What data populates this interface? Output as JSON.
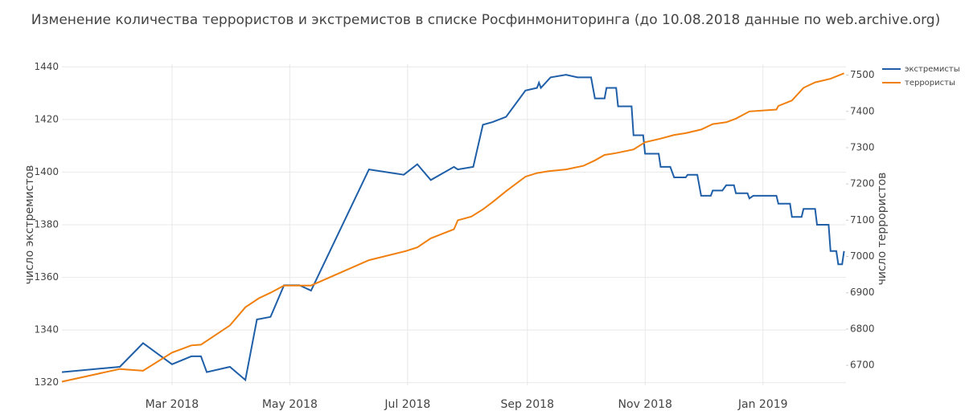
{
  "chart_data": {
    "type": "line",
    "title": "Изменение количества террористов и экстремистов в списке Росфинмониторинга (до 10.08.2018 данные по web.archive.org)",
    "ylabel": "число экстремистов",
    "y2label": "число террористов",
    "xlim": [
      "2018-01-03",
      "2019-02-13"
    ],
    "xticks": [
      {
        "value": "2018-03-01",
        "label": "Mar 2018"
      },
      {
        "value": "2018-05-01",
        "label": "May 2018"
      },
      {
        "value": "2018-07-01",
        "label": "Jul 2018"
      },
      {
        "value": "2018-09-01",
        "label": "Sep 2018"
      },
      {
        "value": "2018-11-01",
        "label": "Nov 2018"
      },
      {
        "value": "2019-01-01",
        "label": "Jan 2019"
      }
    ],
    "ylim": [
      1319,
      1441
    ],
    "yticks": [
      1320,
      1340,
      1360,
      1380,
      1400,
      1420,
      1440
    ],
    "y2lim": [
      6645,
      7530
    ],
    "y2ticks": [
      6700,
      6800,
      6900,
      7000,
      7100,
      7200,
      7300,
      7400,
      7500
    ],
    "grid": true,
    "legend": "top-right",
    "series": [
      {
        "name": "экстремисты",
        "color": "#1f5fa8",
        "axis": "y",
        "x": [
          "2018-01-03",
          "2018-02-02",
          "2018-02-14",
          "2018-03-01",
          "2018-03-11",
          "2018-03-16",
          "2018-03-19",
          "2018-03-31",
          "2018-04-08",
          "2018-04-14",
          "2018-04-21",
          "2018-04-28",
          "2018-05-06",
          "2018-05-12",
          "2018-06-11",
          "2018-06-29",
          "2018-07-06",
          "2018-07-13",
          "2018-07-25",
          "2018-07-27",
          "2018-08-04",
          "2018-08-09",
          "2018-08-14",
          "2018-08-21",
          "2018-08-31",
          "2018-09-06",
          "2018-09-07",
          "2018-09-08",
          "2018-09-13",
          "2018-09-21",
          "2018-09-27",
          "2018-10-04",
          "2018-10-06",
          "2018-10-11",
          "2018-10-12",
          "2018-10-17",
          "2018-10-18",
          "2018-10-25",
          "2018-10-26",
          "2018-10-31",
          "2018-11-01",
          "2018-11-08",
          "2018-11-09",
          "2018-11-14",
          "2018-11-16",
          "2018-11-22",
          "2018-11-23",
          "2018-11-28",
          "2018-11-30",
          "2018-12-05",
          "2018-12-06",
          "2018-12-11",
          "2018-12-13",
          "2018-12-17",
          "2018-12-18",
          "2018-12-24",
          "2018-12-25",
          "2018-12-27",
          "2019-01-08",
          "2019-01-09",
          "2019-01-15",
          "2019-01-16",
          "2019-01-21",
          "2019-01-22",
          "2019-01-28",
          "2019-01-29",
          "2019-02-04",
          "2019-02-05",
          "2019-02-08",
          "2019-02-09",
          "2019-02-11",
          "2019-02-12"
        ],
        "values": [
          1324,
          1326,
          1335,
          1327,
          1330,
          1330,
          1324,
          1326,
          1321,
          1344,
          1345,
          1357,
          1357,
          1355,
          1401,
          1399,
          1403,
          1397,
          1402,
          1401,
          1402,
          1418,
          1419,
          1421,
          1431,
          1432,
          1434,
          1432,
          1436,
          1437,
          1436,
          1436,
          1428,
          1428,
          1432,
          1432,
          1425,
          1425,
          1414,
          1414,
          1407,
          1407,
          1402,
          1402,
          1398,
          1398,
          1399,
          1399,
          1391,
          1391,
          1393,
          1393,
          1395,
          1395,
          1392,
          1392,
          1390,
          1391,
          1391,
          1388,
          1388,
          1383,
          1383,
          1386,
          1386,
          1380,
          1380,
          1370,
          1370,
          1365,
          1365,
          1370
        ]
      },
      {
        "name": "террористы",
        "color": "#f07f0e",
        "axis": "y2",
        "x": [
          "2018-01-03",
          "2018-02-02",
          "2018-02-14",
          "2018-03-01",
          "2018-03-11",
          "2018-03-16",
          "2018-03-31",
          "2018-04-08",
          "2018-04-15",
          "2018-04-21",
          "2018-04-28",
          "2018-05-12",
          "2018-06-11",
          "2018-06-30",
          "2018-07-06",
          "2018-07-13",
          "2018-07-25",
          "2018-07-27",
          "2018-08-03",
          "2018-08-09",
          "2018-08-14",
          "2018-08-21",
          "2018-08-31",
          "2018-09-06",
          "2018-09-12",
          "2018-09-21",
          "2018-09-30",
          "2018-10-06",
          "2018-10-11",
          "2018-10-17",
          "2018-10-26",
          "2018-11-01",
          "2018-11-09",
          "2018-11-16",
          "2018-11-22",
          "2018-11-30",
          "2018-12-06",
          "2018-12-13",
          "2018-12-18",
          "2018-12-25",
          "2019-01-08",
          "2019-01-09",
          "2019-01-16",
          "2019-01-22",
          "2019-01-28",
          "2019-02-05",
          "2019-02-12"
        ],
        "values": [
          6655,
          6690,
          6685,
          6735,
          6755,
          6757,
          6810,
          6860,
          6885,
          6900,
          6920,
          6920,
          6990,
          7015,
          7025,
          7050,
          7075,
          7100,
          7110,
          7130,
          7150,
          7180,
          7220,
          7230,
          7235,
          7240,
          7250,
          7265,
          7280,
          7285,
          7295,
          7315,
          7325,
          7335,
          7340,
          7350,
          7365,
          7370,
          7380,
          7400,
          7405,
          7415,
          7430,
          7465,
          7480,
          7490,
          7505
        ]
      }
    ]
  }
}
